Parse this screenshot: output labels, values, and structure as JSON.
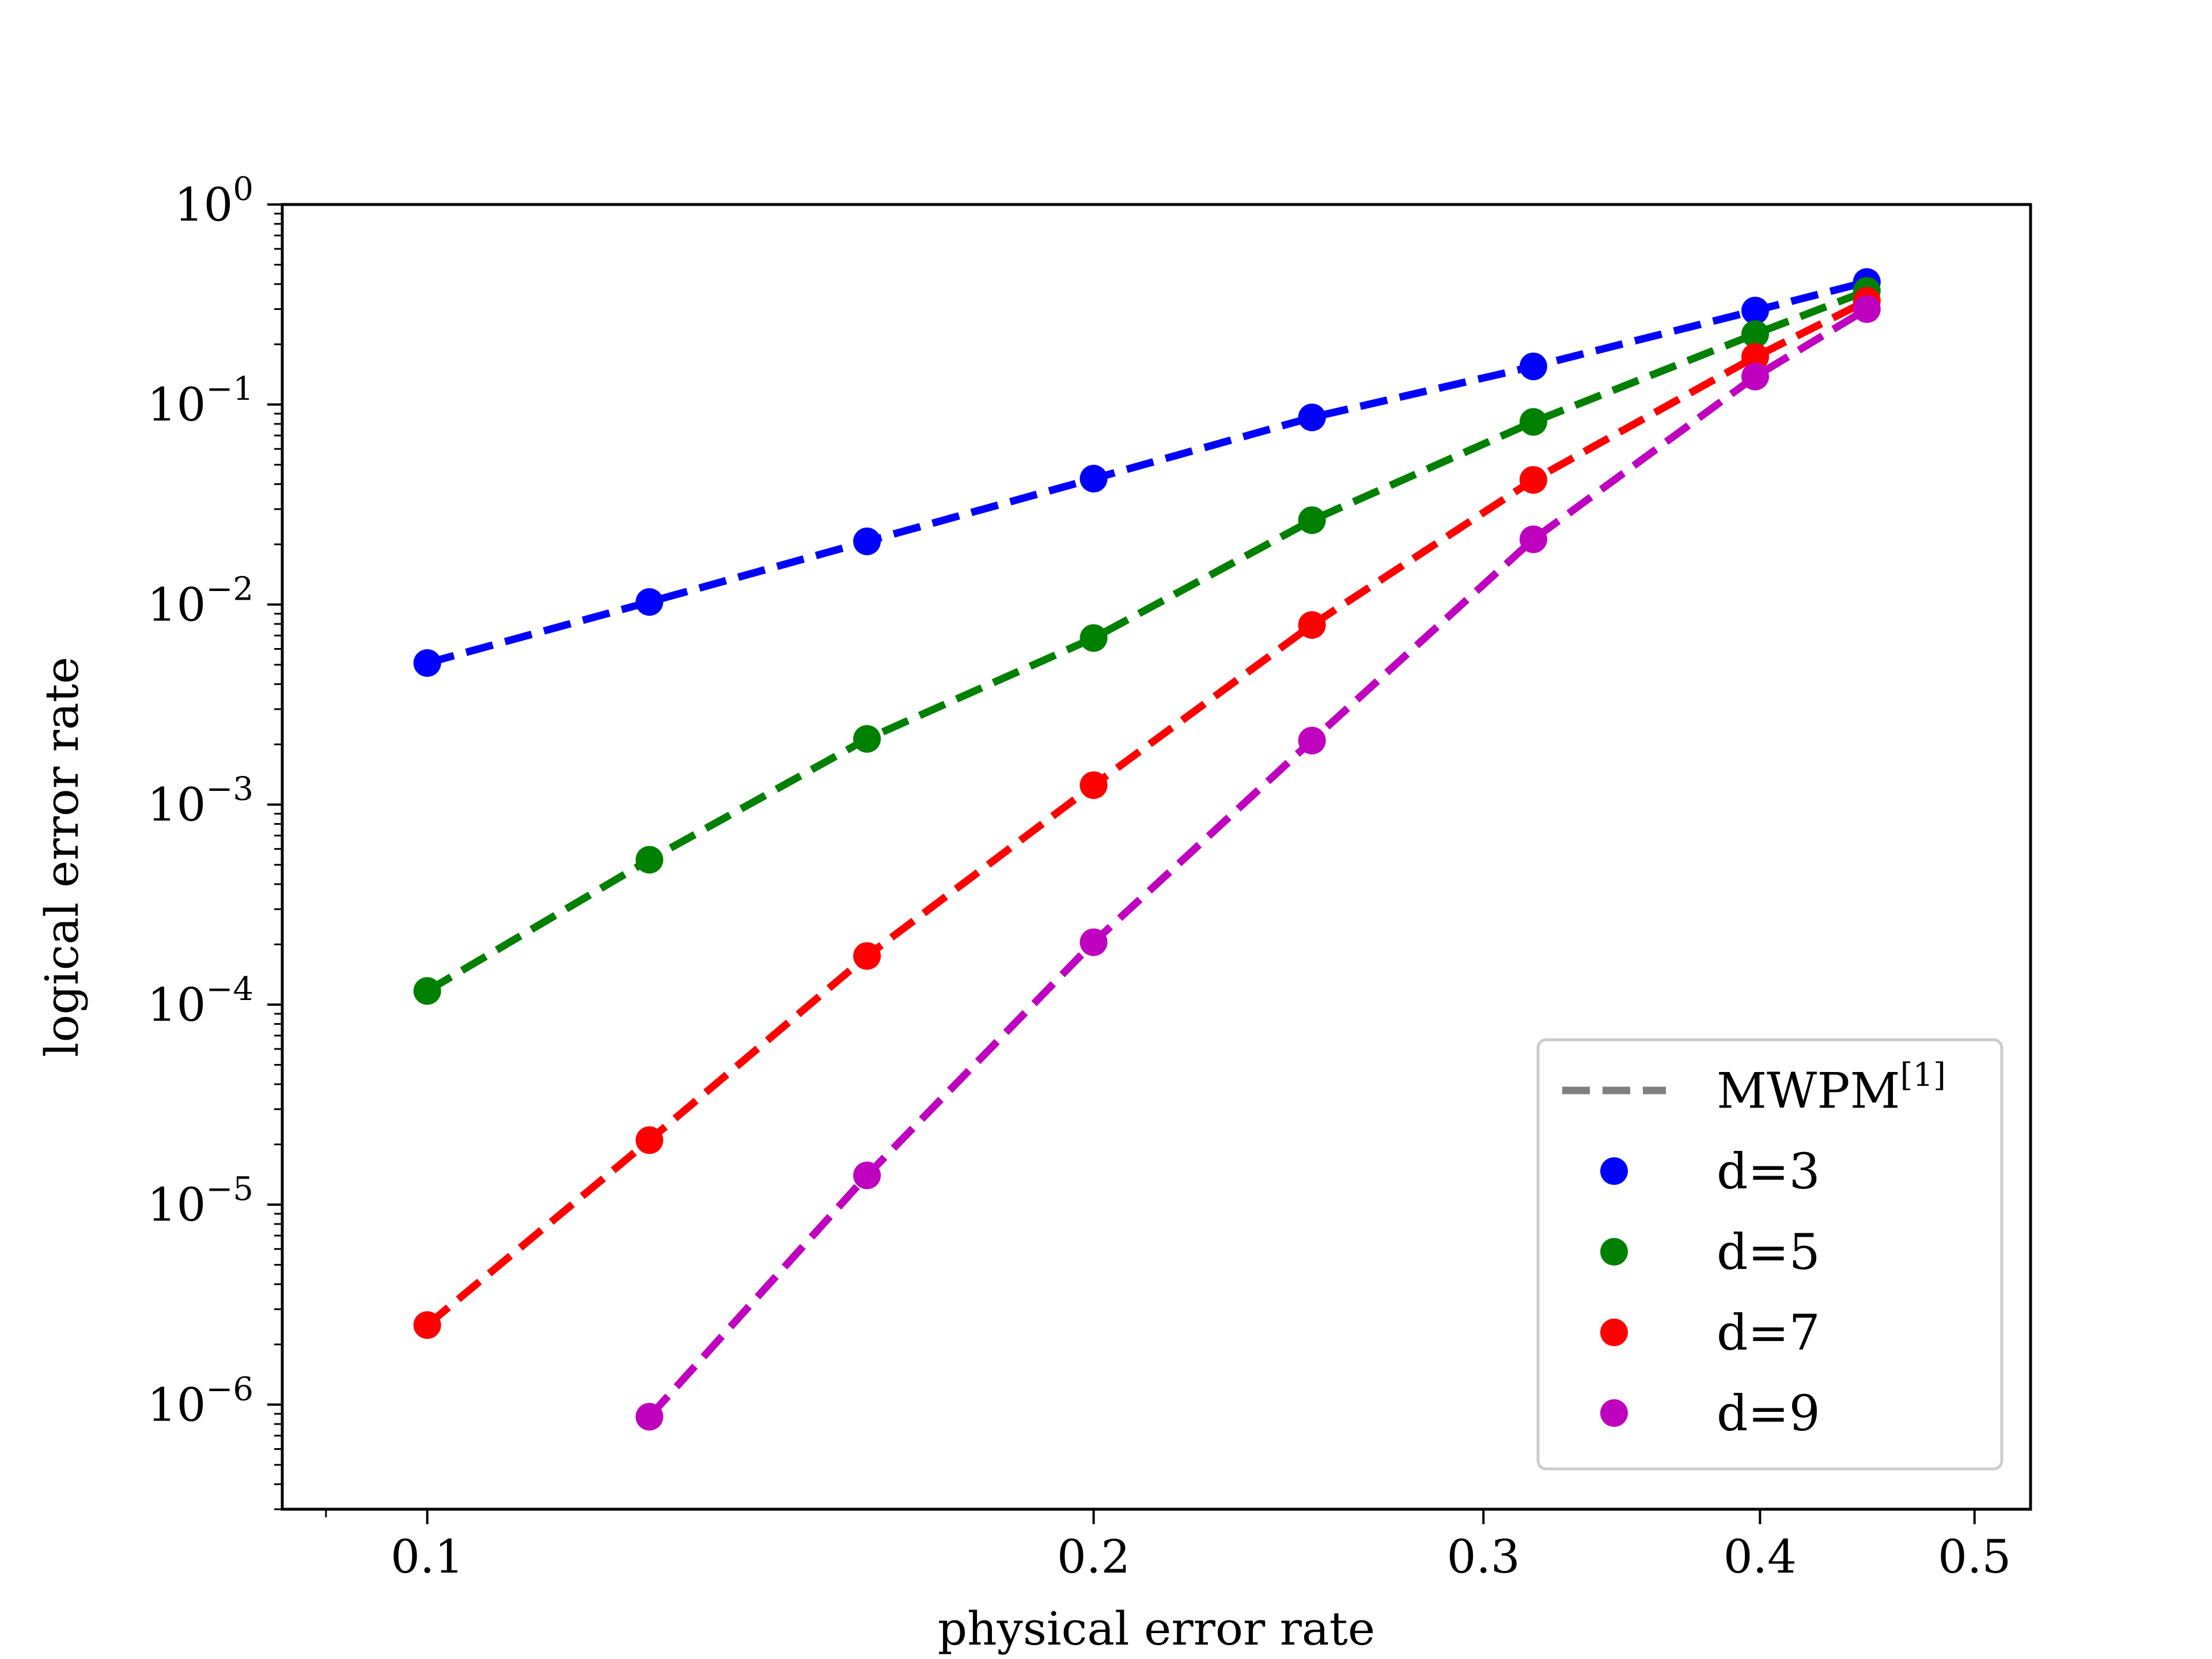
{
  "chart_data": {
    "type": "line",
    "xlabel": "physical error rate",
    "ylabel": "logical error rate",
    "x_scale": "log",
    "y_scale": "log",
    "xlim": [
      0.086,
      0.53
    ],
    "ylim": [
      3e-07,
      1
    ],
    "x_ticks": [
      0.1,
      0.2,
      0.3,
      0.4,
      0.5
    ],
    "x_tick_labels": [
      "0.1",
      "0.2",
      "0.3",
      "0.4",
      "0.5"
    ],
    "y_ticks": [
      {
        "value": 1,
        "base": "10",
        "exp": "0"
      },
      {
        "value": 0.1,
        "base": "10",
        "exp": "−1"
      },
      {
        "value": 0.01,
        "base": "10",
        "exp": "−2"
      },
      {
        "value": 0.001,
        "base": "10",
        "exp": "−3"
      },
      {
        "value": 0.0001,
        "base": "10",
        "exp": "−4"
      },
      {
        "value": 1e-05,
        "base": "10",
        "exp": "−5"
      },
      {
        "value": 1e-06,
        "base": "10",
        "exp": "−6"
      }
    ],
    "grid": false,
    "legend_position": "lower-right",
    "legend": {
      "line_entry": {
        "text": "MWPM",
        "superscript": "[1]",
        "color": "#808080"
      }
    },
    "series": [
      {
        "name": "d=3",
        "color": "#0000ff",
        "x": [
          0.1,
          0.126,
          0.158,
          0.2,
          0.251,
          0.316,
          0.398,
          0.447
        ],
        "y": [
          0.0051,
          0.0103,
          0.0207,
          0.0426,
          0.0862,
          0.155,
          0.295,
          0.41
        ]
      },
      {
        "name": "d=5",
        "color": "#008000",
        "x": [
          0.1,
          0.126,
          0.158,
          0.2,
          0.251,
          0.316,
          0.398,
          0.447
        ],
        "y": [
          0.000117,
          0.00053,
          0.00213,
          0.0068,
          0.0264,
          0.0819,
          0.225,
          0.37
        ]
      },
      {
        "name": "d=7",
        "color": "#ff0000",
        "x": [
          0.1,
          0.126,
          0.158,
          0.2,
          0.251,
          0.316,
          0.398,
          0.447
        ],
        "y": [
          2.5e-06,
          2.1e-05,
          0.000175,
          0.00125,
          0.0079,
          0.042,
          0.173,
          0.33
        ]
      },
      {
        "name": "d=9",
        "color": "#bf00bf",
        "x": [
          0.126,
          0.158,
          0.2,
          0.251,
          0.316,
          0.398,
          0.447
        ],
        "y": [
          8.7e-07,
          1.4e-05,
          0.000205,
          0.00209,
          0.0212,
          0.138,
          0.3
        ]
      }
    ]
  }
}
